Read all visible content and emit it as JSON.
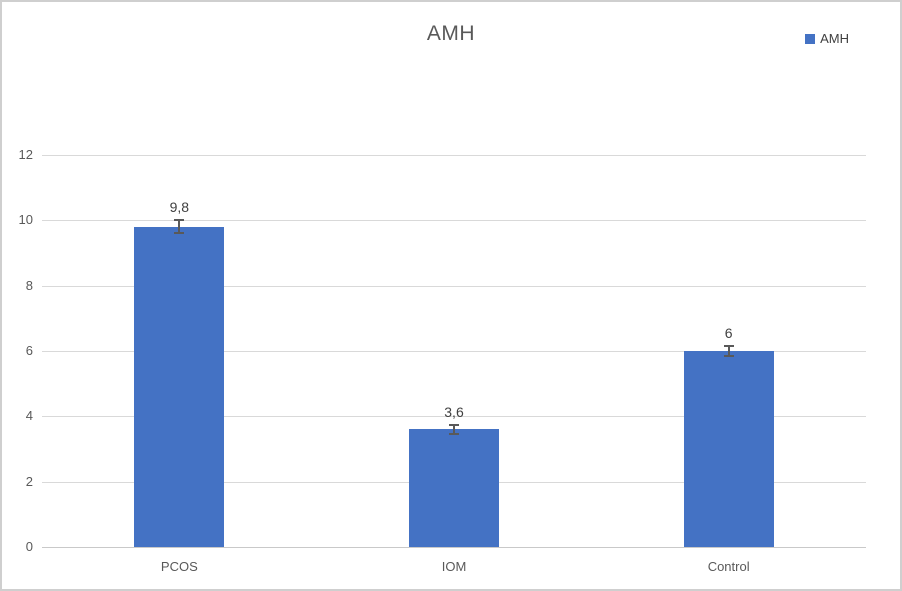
{
  "title": "AMH",
  "legend": {
    "label": "AMH"
  },
  "chart_data": {
    "type": "bar",
    "title": "AMH",
    "categories": [
      "PCOS",
      "IOM",
      "Control"
    ],
    "series": [
      {
        "name": "AMH",
        "values": [
          9.8,
          3.6,
          6
        ],
        "color": "#4472C4"
      }
    ],
    "data_labels": [
      "9,8",
      "3,6",
      "6"
    ],
    "error_bars": [
      0.2,
      0.15,
      0.15
    ],
    "y_ticks": [
      0,
      2,
      4,
      6,
      8,
      10,
      12
    ],
    "ylim": [
      0,
      12
    ],
    "xlabel": "",
    "ylabel": "",
    "grid": "horizontal",
    "legend_position": "top-right",
    "colors": {
      "bar": "#4472C4",
      "gridline": "#D9D9D9",
      "axis_text": "#595959",
      "title_text": "#595959",
      "data_label_text": "#404040",
      "error_bar": "#595959",
      "frame_border": "#CFCFCF"
    }
  }
}
